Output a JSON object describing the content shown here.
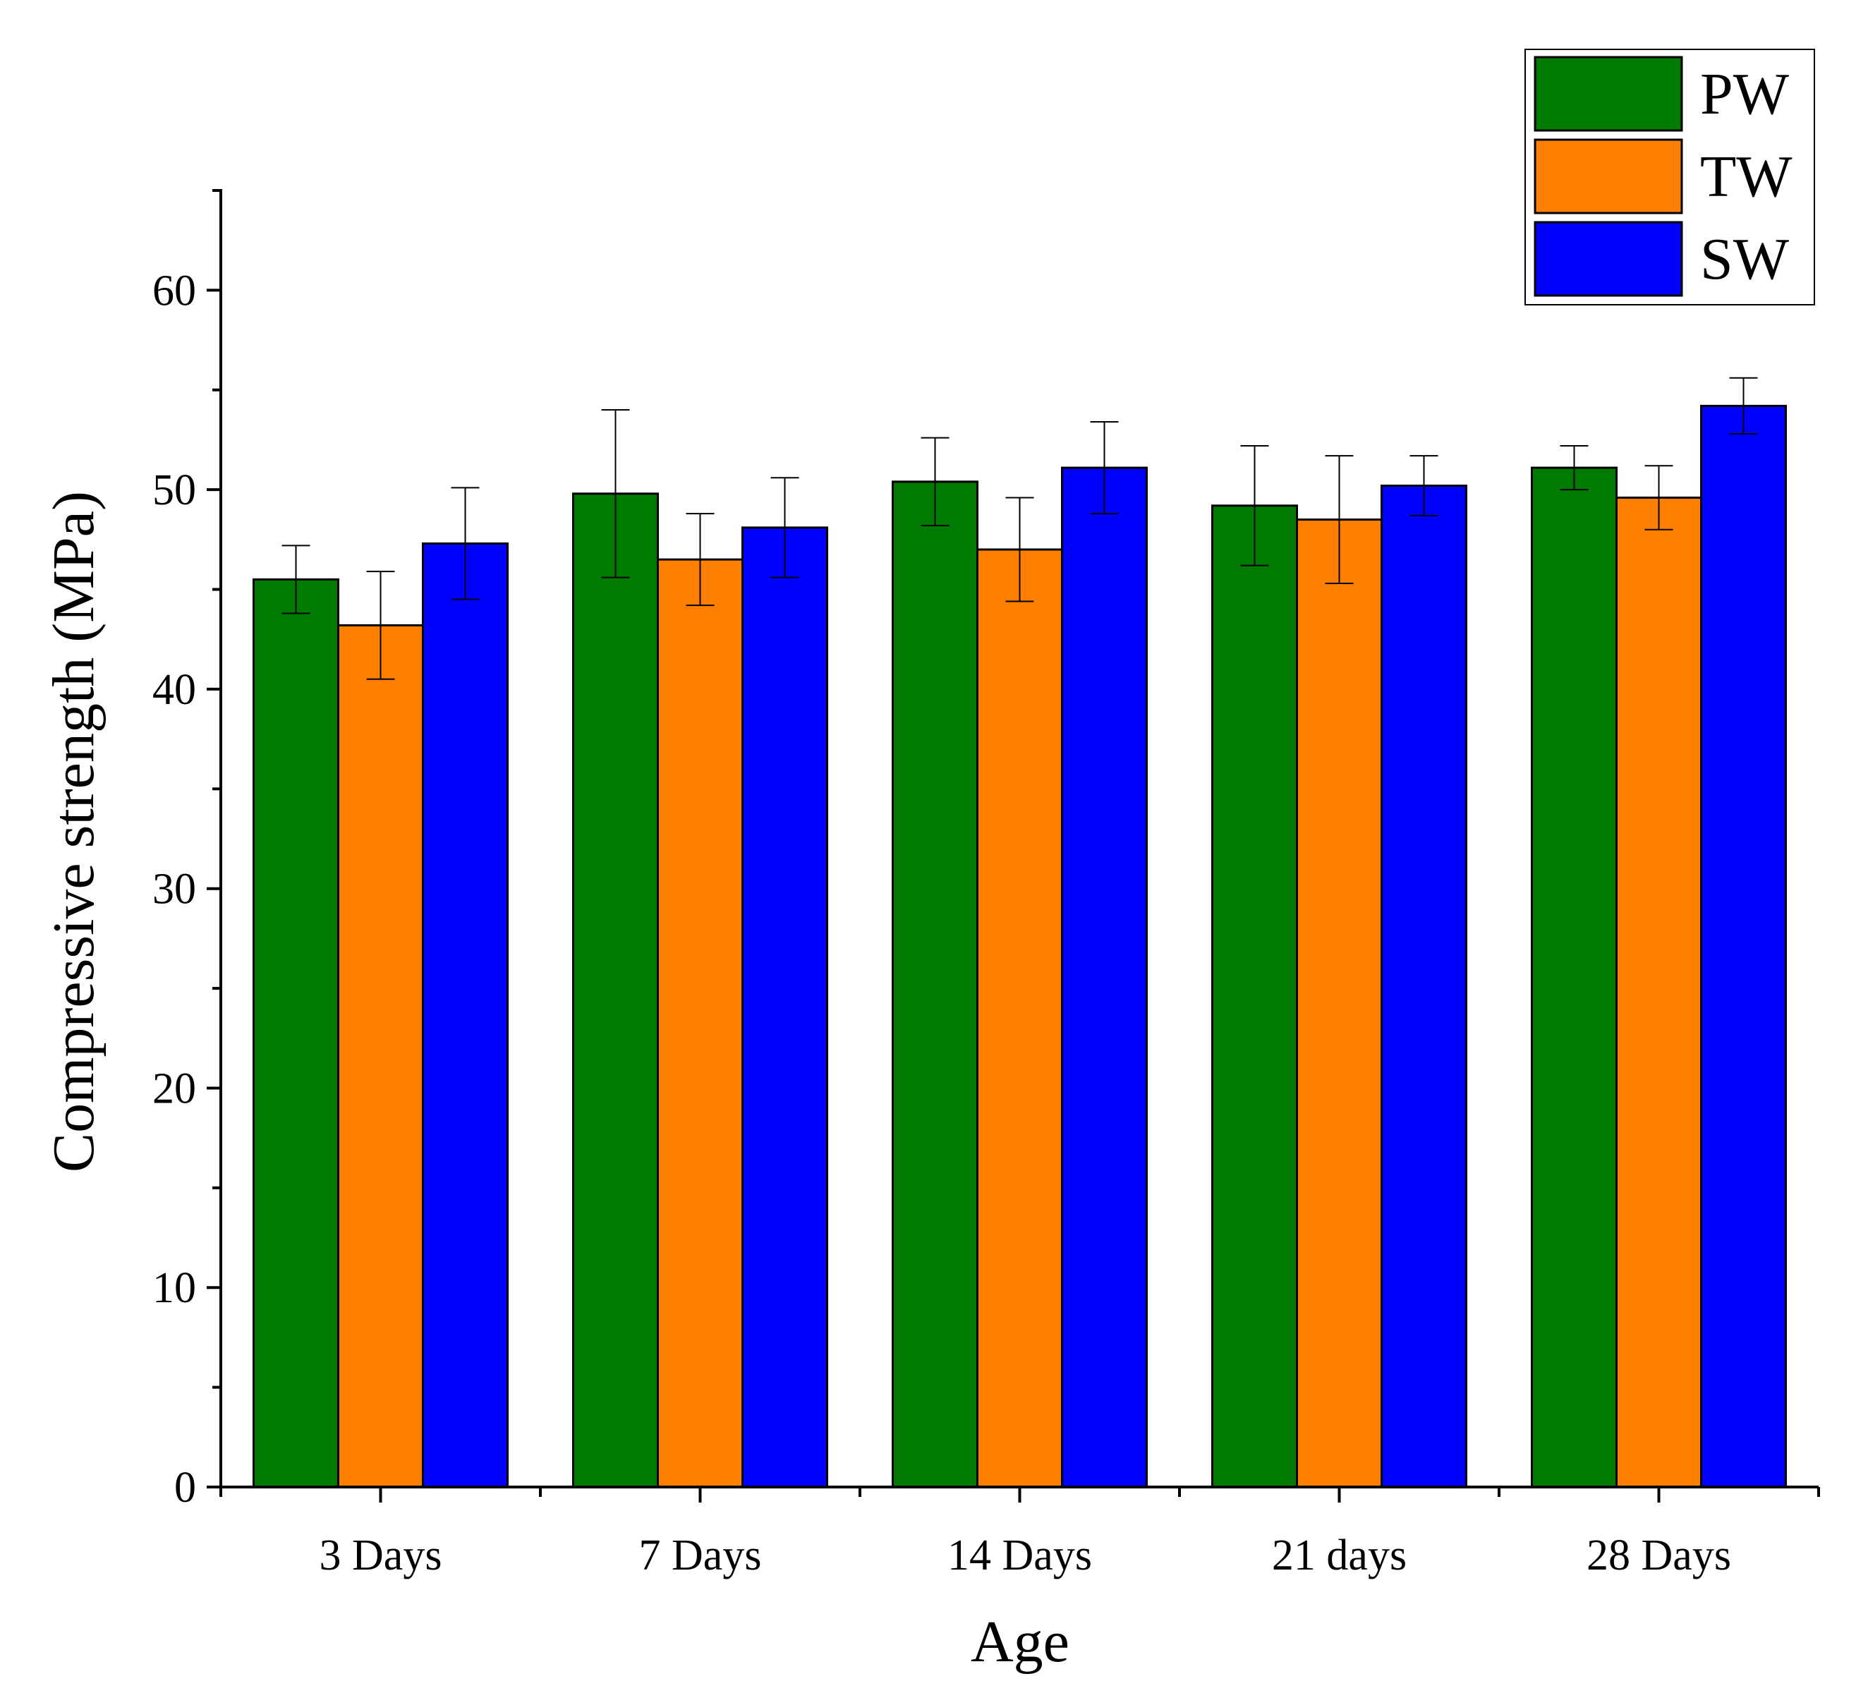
{
  "chart_data": {
    "type": "bar",
    "title": "",
    "xlabel": "Age",
    "ylabel": "Compressive strength (MPa)",
    "categories": [
      "3 Days",
      "7 Days",
      "14 Days",
      "21 days",
      "28 Days"
    ],
    "ylim": [
      0,
      65
    ],
    "yticks": [
      0,
      10,
      20,
      30,
      40,
      50,
      60
    ],
    "grid": false,
    "legend_position": "top-right",
    "series": [
      {
        "name": "PW",
        "color": "#007A00",
        "values": [
          45.5,
          49.8,
          50.4,
          49.2,
          51.1
        ],
        "errors": [
          1.7,
          4.2,
          2.2,
          3.0,
          1.1
        ]
      },
      {
        "name": "TW",
        "color": "#FF8000",
        "values": [
          43.2,
          46.5,
          47.0,
          48.5,
          49.6
        ],
        "errors": [
          2.7,
          2.3,
          2.6,
          3.2,
          1.6
        ]
      },
      {
        "name": "SW",
        "color": "#0000FF",
        "values": [
          47.3,
          48.1,
          51.1,
          50.2,
          54.2
        ],
        "errors": [
          2.8,
          2.5,
          2.3,
          1.5,
          1.4
        ]
      }
    ]
  }
}
